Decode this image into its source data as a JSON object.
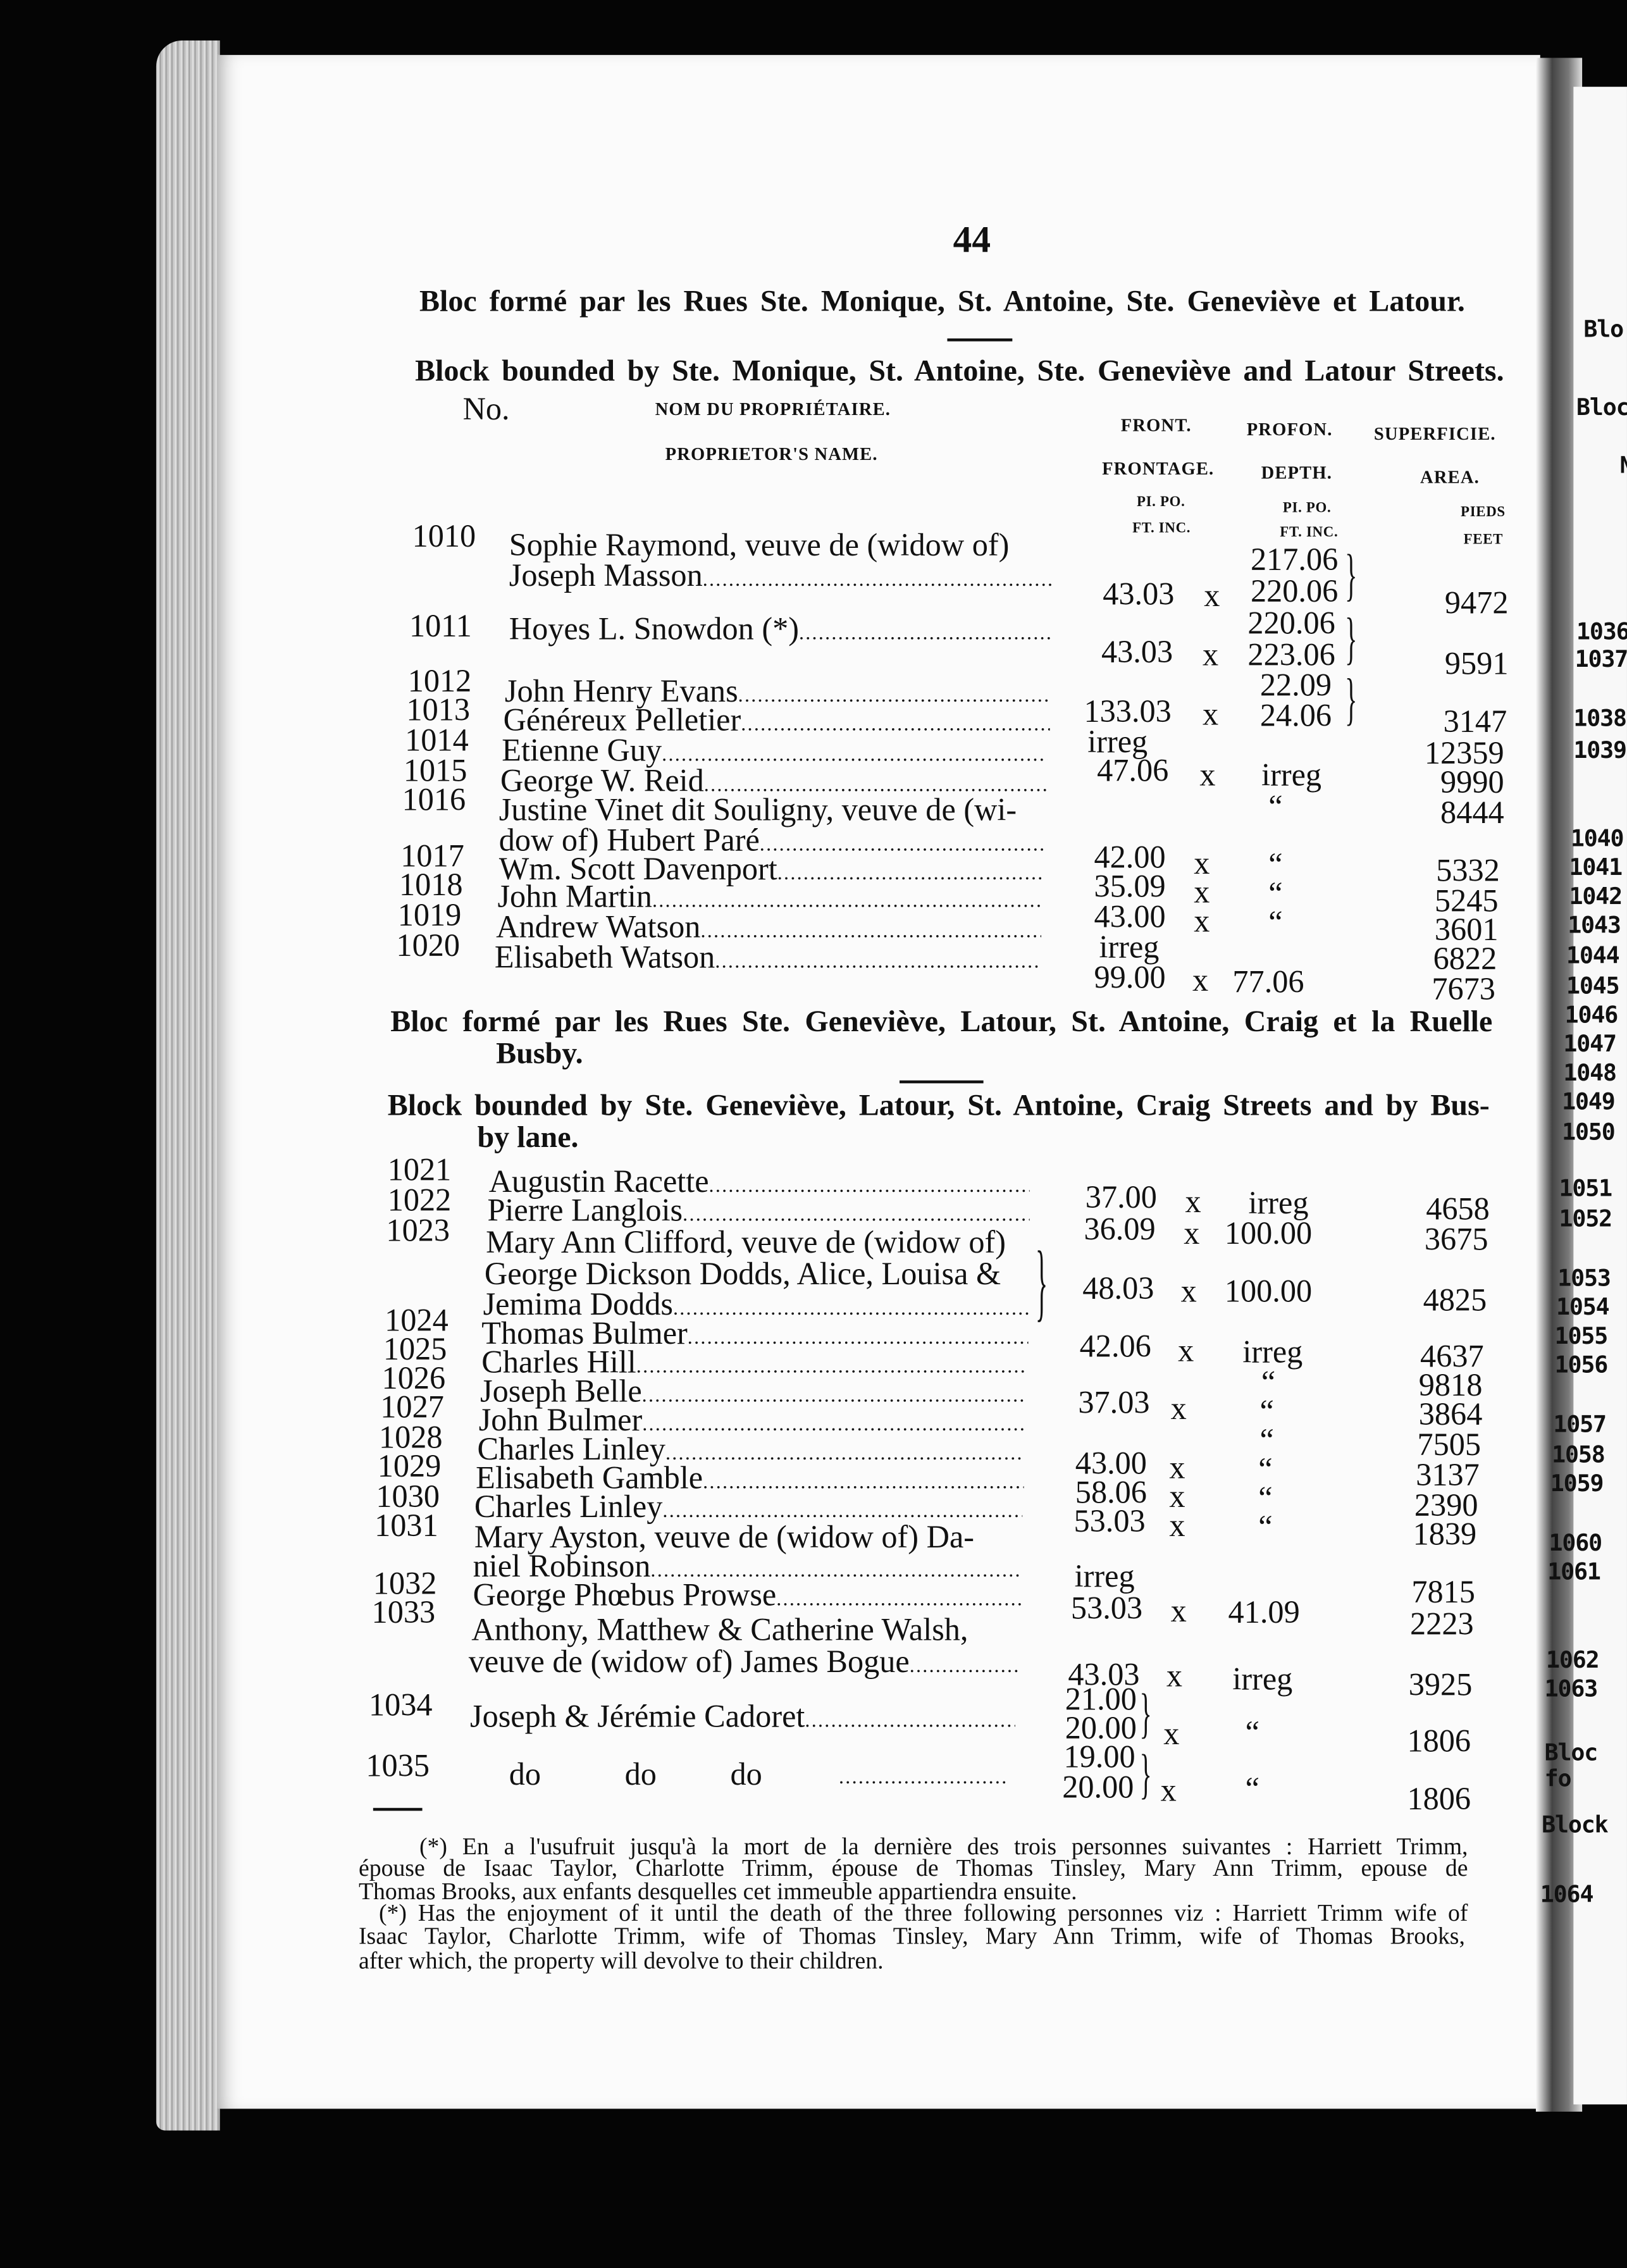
{
  "page_number": "44",
  "headers": {
    "no": "No.",
    "name_fr": "NOM DU PROPRIÉTAIRE.",
    "name_en": "PROPRIETOR'S NAME.",
    "front_fr": "FRONT.",
    "front_en": "FRONTAGE.",
    "depth_fr": "PROFON.",
    "depth_en": "DEPTH.",
    "area_fr": "SUPERFICIE.",
    "area_en": "AREA.",
    "front_unit_fr": "PI. PO.",
    "front_unit_en": "FT. INC.",
    "depth_unit_fr": "PI. PO.",
    "depth_unit_en": "FT. INC.",
    "area_unit_fr": "PIEDS",
    "area_unit_en": "FEET"
  },
  "sections": [
    {
      "title_fr": [
        "Bloc formé par les Rues Ste. Monique, St. Antoine, Ste. Geneviève et Latour."
      ],
      "title_en": [
        "Block bounded by Ste. Monique, St. Antoine, Ste. Geneviève and Latour Streets."
      ],
      "rows": [
        {
          "no": "1010",
          "name": [
            "Sophie Raymond, veuve de (widow of)",
            "Joseph Masson"
          ],
          "front": [
            "43.03"
          ],
          "x": [
            "x"
          ],
          "depth": [
            "217.06",
            "220.06"
          ],
          "area": [
            "9472"
          ]
        },
        {
          "no": "1011",
          "name": [
            "Hoyes L. Snowdon (*)"
          ],
          "front": [
            "43.03"
          ],
          "x": [
            "x"
          ],
          "depth": [
            "220.06",
            "223.06"
          ],
          "area": [
            "9591"
          ]
        },
        {
          "no": "1012",
          "name": [
            "John Henry Evans"
          ],
          "depth": [
            "22.09"
          ]
        },
        {
          "no": "1013",
          "name": [
            "Généreux Pelletier"
          ],
          "front": [
            "133.03"
          ],
          "x": [
            "x"
          ],
          "depth": [
            "24.06"
          ],
          "area": [
            "3147"
          ]
        },
        {
          "no": "1014",
          "name": [
            "Etienne Guy"
          ],
          "front": [
            "irreg"
          ],
          "area": [
            "12359"
          ]
        },
        {
          "no": "1015",
          "name": [
            "George W. Reid"
          ],
          "front": [
            "47.06"
          ],
          "x": [
            "x"
          ],
          "depth": [
            "irreg"
          ],
          "area": [
            "9990"
          ]
        },
        {
          "no": "1016",
          "name": [
            "Justine Vinet dit Souligny, veuve de (wi-",
            "dow of) Hubert Paré"
          ],
          "depth": [
            "“"
          ],
          "area": [
            "8444"
          ]
        },
        {
          "no": "1017",
          "name": [
            "Wm. Scott Davenport"
          ],
          "front": [
            "42.00"
          ],
          "x": [
            "x"
          ],
          "depth": [
            "“"
          ],
          "area": [
            "5332"
          ]
        },
        {
          "no": "1018",
          "name": [
            "John Martin"
          ],
          "front": [
            "35.09"
          ],
          "x": [
            "x"
          ],
          "depth": [
            "“"
          ],
          "area": [
            "5245"
          ]
        },
        {
          "no": "1019",
          "name": [
            "Andrew Watson"
          ],
          "front": [
            "43.00"
          ],
          "x": [
            "x"
          ],
          "depth": [
            "“"
          ],
          "area": [
            "3601"
          ]
        },
        {
          "no": "1020",
          "name": [
            "Elisabeth Watson"
          ],
          "front": [
            "irreg"
          ],
          "area": [
            "6822"
          ]
        },
        {
          "front": [
            "99.00"
          ],
          "x": [
            "x"
          ],
          "depth": [
            "77.06"
          ],
          "area": [
            "7673"
          ]
        }
      ]
    },
    {
      "title_fr": [
        "Bloc formé par les Rues Ste. Geneviève, Latour, St. Antoine, Craig et la Ruelle",
        "Busby."
      ],
      "title_en": [
        "Block bounded by Ste. Geneviève, Latour, St. Antoine, Craig Streets and by Bus-",
        "by lane."
      ],
      "rows": [
        {
          "no": "1021",
          "name": [
            "Augustin Racette"
          ]
        },
        {
          "no": "1022",
          "name": [
            "Pierre Langlois"
          ],
          "front": [
            "37.00"
          ],
          "x": [
            "x"
          ],
          "depth": [
            "irreg"
          ],
          "area": [
            "4658"
          ]
        },
        {
          "no": "1023",
          "name": [
            "Mary Ann Clifford, veuve de (widow of)",
            "George Dickson Dodds, Alice, Louisa &",
            "Jemima Dodds"
          ],
          "front": [
            "36.09",
            "48.03"
          ],
          "x": [
            "x",
            "x"
          ],
          "depth": [
            "100.00",
            "100.00"
          ],
          "area": [
            "3675",
            "4825"
          ]
        },
        {
          "no": "1024",
          "name": [
            "Thomas Bulmer"
          ]
        },
        {
          "no": "1025",
          "name": [
            "Charles Hill"
          ],
          "front": [
            "42.06"
          ],
          "x": [
            "x"
          ],
          "depth": [
            "irreg"
          ],
          "area": [
            "4637"
          ]
        },
        {
          "no": "1026",
          "name": [
            "Joseph Belle"
          ],
          "depth": [
            "“"
          ],
          "area": [
            "9818"
          ]
        },
        {
          "no": "1027",
          "name": [
            "John Bulmer"
          ],
          "front": [
            "37.03"
          ],
          "x": [
            "x"
          ],
          "depth": [
            "“"
          ],
          "area": [
            "3864"
          ]
        },
        {
          "no": "1028",
          "name": [
            "Charles Linley"
          ],
          "depth": [
            "“"
          ],
          "area": [
            "7505"
          ]
        },
        {
          "no": "1029",
          "name": [
            "Elisabeth Gamble"
          ],
          "front": [
            "43.00"
          ],
          "x": [
            "x"
          ],
          "depth": [
            "“"
          ],
          "area": [
            "3137"
          ]
        },
        {
          "no": "1030",
          "name": [
            "Charles Linley"
          ],
          "front": [
            "58.06"
          ],
          "x": [
            "x"
          ],
          "depth": [
            "“"
          ],
          "area": [
            "2390"
          ]
        },
        {
          "no": "1031",
          "name": [
            "Mary Ayston, veuve de (widow of) Da-",
            "niel Robinson"
          ],
          "front": [
            "53.03"
          ],
          "x": [
            "x"
          ],
          "depth": [
            "“"
          ],
          "area": [
            "1839"
          ]
        },
        {
          "no": "1032",
          "name": [
            "George Phœbus Prowse"
          ],
          "front": [
            "irreg"
          ],
          "area": [
            "7815"
          ]
        },
        {
          "no": "1033",
          "name": [
            "Anthony, Matthew & Catherine Walsh,",
            "veuve de (widow of) James Bogue"
          ],
          "front": [
            "53.03",
            "43.03"
          ],
          "x": [
            "x",
            "x"
          ],
          "depth": [
            "41.09",
            "irreg"
          ],
          "area": [
            "2223",
            "3925"
          ]
        },
        {
          "no": "1034",
          "name": [
            "Joseph & Jérémie Cadoret"
          ],
          "front": [
            "21.00",
            "20.00"
          ],
          "x": [
            "x"
          ],
          "depth": [
            "“"
          ],
          "area": [
            "1806"
          ]
        },
        {
          "no": "1035",
          "name": [
            "do",
            "do",
            "do"
          ],
          "front": [
            "19.00",
            "20.00"
          ],
          "x": [
            "x"
          ],
          "depth": [
            "“"
          ],
          "area": [
            "1806"
          ]
        }
      ]
    }
  ],
  "footnotes": [
    "(*) En a l'usufruit jusqu'à la mort de la dernière des trois personnes suivantes : Harriett Trimm,",
    "épouse de Isaac Taylor, Charlotte Trimm, épouse de Thomas Tinsley, Mary Ann Trimm, epouse de",
    "Thomas Brooks, aux enfants desquelles cet immeuble appartiendra ensuite.",
    "(*) Has the enjoyment of it until the death of the three following personnes viz : Harriett Trimm wife of",
    "Isaac Taylor, Charlotte Trimm, wife of Thomas Tinsley, Mary Ann Trimm, wife of Thomas Brooks,",
    "after which, the property will devolve to their children."
  ],
  "facing_page": {
    "headings": [
      "Blo",
      "Bloc",
      "N"
    ],
    "numbers": [
      "1036",
      "1037",
      "1038",
      "1039",
      "1040",
      "1041",
      "1042",
      "1043",
      "1044",
      "1045",
      "1046",
      "1047",
      "1048",
      "1049",
      "1050",
      "1051",
      "1052",
      "1053",
      "1054",
      "1055",
      "1056",
      "1057",
      "1058",
      "1059",
      "1060",
      "1061",
      "1062",
      "1063"
    ],
    "tail": [
      "Bloc fo",
      "Block"
    ],
    "last_number": "1064"
  }
}
